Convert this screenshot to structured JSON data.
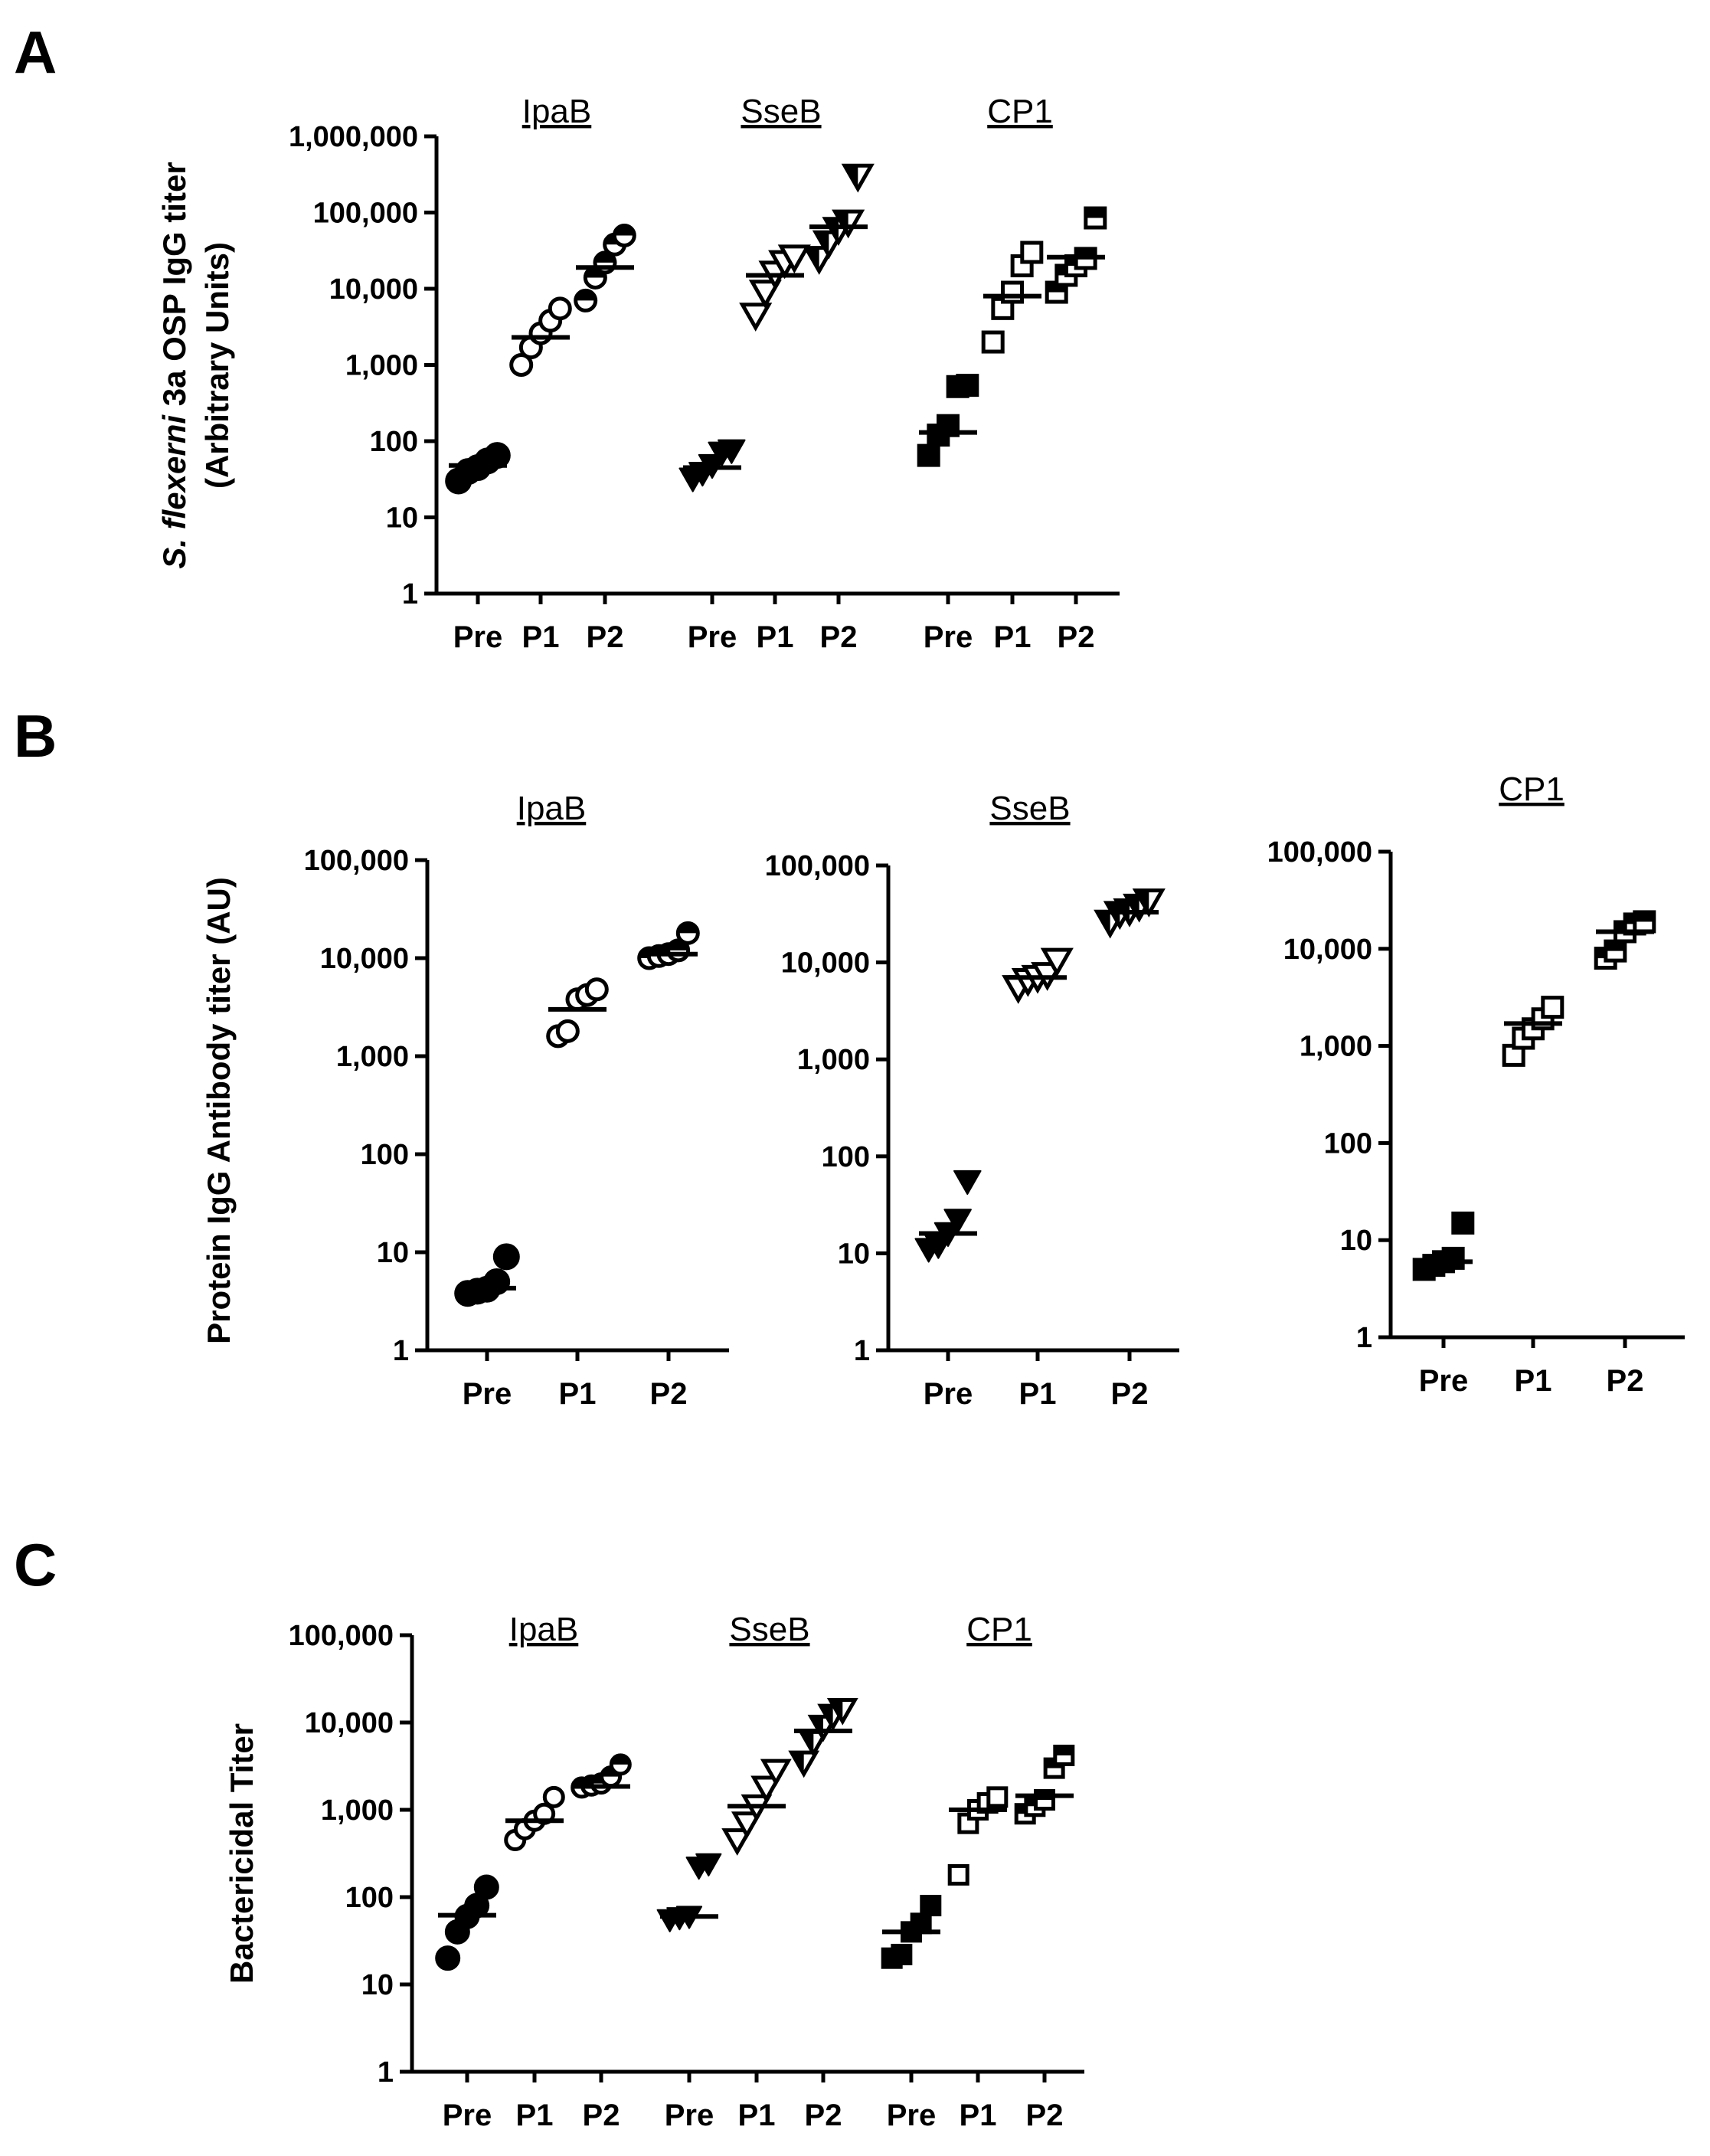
{
  "figure": {
    "panels": [
      "A",
      "B",
      "C"
    ]
  },
  "chart_data": [
    {
      "id": "A",
      "type": "scatter",
      "panel_label": "A",
      "ylabel_italic": "S. flexerni",
      "ylabel_rest": " 3a OSP IgG titer",
      "ylabel_line2": "(Arbitrary Units)",
      "yscale": "log",
      "ylim": [
        1,
        1000000
      ],
      "yticks": [
        1,
        10,
        100,
        1000,
        10000,
        100000,
        1000000
      ],
      "ytick_labels": [
        "1",
        "10",
        "100",
        "1,000",
        "10,000",
        "100,000",
        "1,000,000"
      ],
      "groups": [
        {
          "title": "IpaB",
          "marker": "circle",
          "categories": [
            "Pre",
            "P1",
            "P2"
          ],
          "points": [
            [
              30,
              40,
              45,
              55,
              65
            ],
            [
              1000,
              1700,
              2600,
              3800,
              5500
            ],
            [
              7000,
              14000,
              22000,
              38000,
              50000
            ]
          ],
          "medians": [
            48,
            2300,
            19000
          ]
        },
        {
          "title": "SseB",
          "marker": "triangle",
          "categories": [
            "Pre",
            "P1",
            "P2"
          ],
          "points": [
            [
              32,
              38,
              48,
              70,
              75
            ],
            [
              4500,
              9000,
              16000,
              22000,
              26000
            ],
            [
              25000,
              40000,
              60000,
              75000,
              300000
            ]
          ],
          "medians": [
            45,
            15000,
            65000
          ]
        },
        {
          "title": "CP1",
          "marker": "square",
          "categories": [
            "Pre",
            "P1",
            "P2"
          ],
          "points": [
            [
              65,
              120,
              160,
              520,
              540
            ],
            [
              2000,
              5500,
              9000,
              20000,
              30000
            ],
            [
              9000,
              15000,
              20000,
              25000,
              85000
            ]
          ],
          "medians": [
            130,
            8000,
            26000
          ]
        }
      ]
    },
    {
      "id": "B",
      "type": "scatter",
      "panel_label": "B",
      "ylabel": "Protein IgG Antibody titer (AU)",
      "yscale": "log",
      "ylim": [
        1,
        100000
      ],
      "yticks": [
        1,
        10,
        100,
        1000,
        10000,
        100000
      ],
      "ytick_labels": [
        "1",
        "10",
        "100",
        "1,000",
        "10,000",
        "100,000"
      ],
      "subplots": [
        {
          "title": "IpaB",
          "marker": "circle",
          "categories": [
            "Pre",
            "P1",
            "P2"
          ],
          "points": [
            [
              3.8,
              4.0,
              4.2,
              5.0,
              9.0
            ],
            [
              1600,
              1800,
              3800,
              4200,
              4800
            ],
            [
              10000,
              10500,
              11000,
              12000,
              18000
            ]
          ],
          "medians": [
            4.3,
            3000,
            11000
          ]
        },
        {
          "title": "SseB",
          "marker": "triangle",
          "categories": [
            "Pre",
            "P1",
            "P2"
          ],
          "points": [
            [
              11,
              12,
              16,
              22,
              55
            ],
            [
              5500,
              6500,
              7000,
              7500,
              10500
            ],
            [
              26000,
              32000,
              34000,
              38000,
              43000
            ]
          ],
          "medians": [
            16,
            7000,
            33000
          ]
        },
        {
          "title": "CP1",
          "marker": "square",
          "categories": [
            "Pre",
            "P1",
            "P2"
          ],
          "points": [
            [
              5,
              5.5,
              6,
              6.5,
              15
            ],
            [
              800,
              1200,
              1500,
              1900,
              2500
            ],
            [
              8000,
              9500,
              15000,
              18000,
              19000
            ]
          ],
          "medians": [
            6,
            1700,
            15000
          ]
        }
      ]
    },
    {
      "id": "C",
      "type": "scatter",
      "panel_label": "C",
      "ylabel": "Bactericidal Titer",
      "yscale": "log",
      "ylim": [
        1,
        100000
      ],
      "yticks": [
        1,
        10,
        100,
        1000,
        10000,
        100000
      ],
      "ytick_labels": [
        "1",
        "10",
        "100",
        "1,000",
        "10,000",
        "100,000"
      ],
      "groups": [
        {
          "title": "IpaB",
          "marker": "circle",
          "categories": [
            "Pre",
            "P1",
            "P2"
          ],
          "points": [
            [
              20,
              40,
              60,
              80,
              130
            ],
            [
              450,
              600,
              750,
              900,
              1400
            ],
            [
              1800,
              1900,
              2000,
              2400,
              3300
            ]
          ],
          "medians": [
            62,
            750,
            1850
          ]
        },
        {
          "title": "SseB",
          "marker": "triangle",
          "categories": [
            "Pre",
            "P1",
            "P2"
          ],
          "points": [
            [
              55,
              58,
              60,
              220,
              240
            ],
            [
              450,
              700,
              1100,
              1800,
              2800
            ],
            [
              3500,
              6000,
              9000,
              12000,
              14000
            ]
          ],
          "medians": [
            60,
            1100,
            8000
          ]
        },
        {
          "title": "CP1",
          "marker": "square",
          "categories": [
            "Pre",
            "P1",
            "P2"
          ],
          "points": [
            [
              20,
              22,
              40,
              50,
              80
            ],
            [
              180,
              700,
              1000,
              1200,
              1400
            ],
            [
              900,
              1100,
              1300,
              3000,
              4200
            ]
          ],
          "medians": [
            40,
            1000,
            1450
          ]
        }
      ]
    }
  ]
}
